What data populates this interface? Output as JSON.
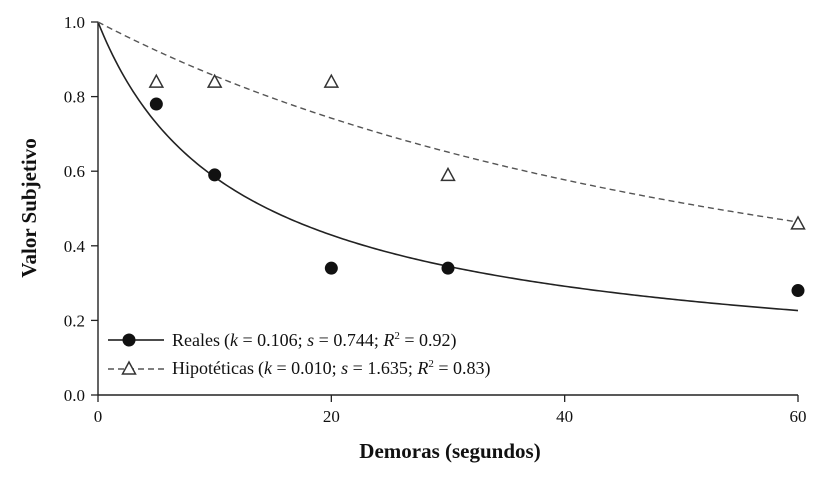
{
  "chart_data": {
    "type": "scatter",
    "xlabel": "Demoras (segundos)",
    "ylabel": "Valor Subjetivo",
    "xlim": [
      0,
      60
    ],
    "ylim": [
      0,
      1.0
    ],
    "x_ticks": [
      "0",
      "20",
      "40",
      "60"
    ],
    "y_ticks": [
      "0.0",
      "0.2",
      "0.4",
      "0.6",
      "0.8",
      "1.0"
    ],
    "legend_position": "bottom-left",
    "series": [
      {
        "name": "Reales",
        "legend": {
          "name": "Reales",
          "k_label": "k",
          "k_value": "0.106",
          "s_label": "s",
          "s_value": "0.744",
          "r_label": "R",
          "r_value": "0.92"
        },
        "marker": "filled-circle",
        "line_style": "solid",
        "color": "#111111",
        "points": [
          {
            "x": 0,
            "y": 1.0
          },
          {
            "x": 5,
            "y": 0.78
          },
          {
            "x": 10,
            "y": 0.59
          },
          {
            "x": 20,
            "y": 0.34
          },
          {
            "x": 30,
            "y": 0.34
          },
          {
            "x": 60,
            "y": 0.28
          }
        ],
        "fit": {
          "k": 0.106,
          "s": 0.744
        }
      },
      {
        "name": "Hipotéticas",
        "legend": {
          "name": "Hipotéticas",
          "k_label": "k",
          "k_value": "0.010",
          "s_label": "s",
          "s_value": "1.635",
          "r_label": "R",
          "r_value": "0.83"
        },
        "marker": "open-triangle",
        "line_style": "dashed",
        "color": "#555555",
        "points": [
          {
            "x": 0,
            "y": 1.0
          },
          {
            "x": 5,
            "y": 0.84
          },
          {
            "x": 10,
            "y": 0.84
          },
          {
            "x": 20,
            "y": 0.84
          },
          {
            "x": 30,
            "y": 0.59
          },
          {
            "x": 60,
            "y": 0.46
          }
        ],
        "fit": {
          "k": 0.01,
          "s": 1.635
        }
      }
    ]
  }
}
